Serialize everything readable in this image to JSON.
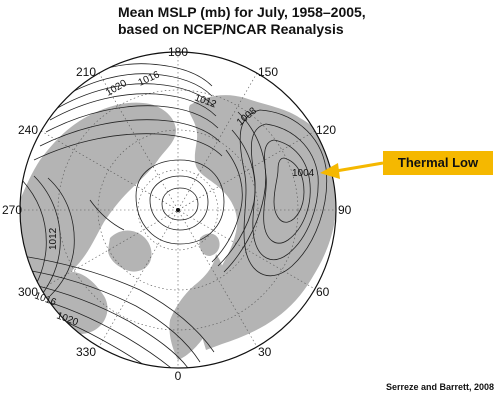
{
  "title_line1": "Mean MSLP (mb) for July, 1958–2005,",
  "title_line2": "based on NCEP/NCAR Reanalysis",
  "callout_label": "Thermal Low",
  "credit": "Serreze and Barrett, 2008",
  "longitude_labels": [
    "180",
    "150",
    "120",
    "90",
    "60",
    "30",
    "0",
    "330",
    "300",
    "270",
    "240",
    "210"
  ],
  "isobar_labels": [
    "1020",
    "1016",
    "1012",
    "1008",
    "1004",
    "1012",
    "1016",
    "1020"
  ],
  "colors": {
    "land": "#b4b4b4",
    "ocean": "#ffffff",
    "contour": "#222222",
    "callout": "#f5b800",
    "arrow": "#f5b800"
  }
}
